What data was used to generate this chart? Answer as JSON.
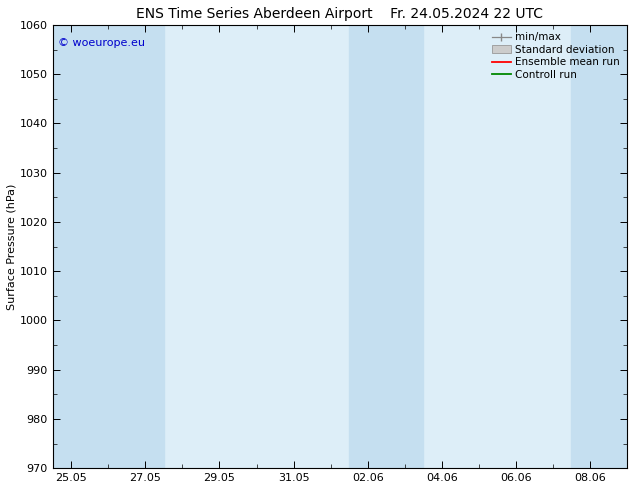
{
  "title_left": "ENS Time Series Aberdeen Airport",
  "title_right": "Fr. 24.05.2024 22 UTC",
  "ylabel": "Surface Pressure (hPa)",
  "ylim": [
    970,
    1060
  ],
  "yticks": [
    970,
    980,
    990,
    1000,
    1010,
    1020,
    1030,
    1040,
    1050,
    1060
  ],
  "xtick_labels": [
    "25.05",
    "27.05",
    "29.05",
    "31.05",
    "02.06",
    "04.06",
    "06.06",
    "08.06"
  ],
  "xtick_positions": [
    0,
    2,
    4,
    6,
    8,
    10,
    12,
    14
  ],
  "xmin": -0.5,
  "xmax": 15.0,
  "shaded_bands": [
    {
      "x_start": -0.5,
      "x_end": 1.5
    },
    {
      "x_start": 1.5,
      "x_end": 2.5
    },
    {
      "x_start": 7.5,
      "x_end": 9.5
    },
    {
      "x_start": 13.5,
      "x_end": 15.0
    }
  ],
  "plot_bg_color": "#ddeef8",
  "band_color": "#c5dff0",
  "copyright_text": "© woeurope.eu",
  "copyright_color": "#0000cc",
  "legend_items": [
    {
      "label": "min/max",
      "color": "#999999",
      "type": "errorbar"
    },
    {
      "label": "Standard deviation",
      "color": "#cccccc",
      "type": "bar"
    },
    {
      "label": "Ensemble mean run",
      "color": "#ff0000",
      "type": "line"
    },
    {
      "label": "Controll run",
      "color": "#008800",
      "type": "line"
    }
  ],
  "background_color": "#ffffff",
  "title_fontsize": 10,
  "axis_fontsize": 8,
  "tick_fontsize": 8,
  "legend_fontsize": 7.5
}
